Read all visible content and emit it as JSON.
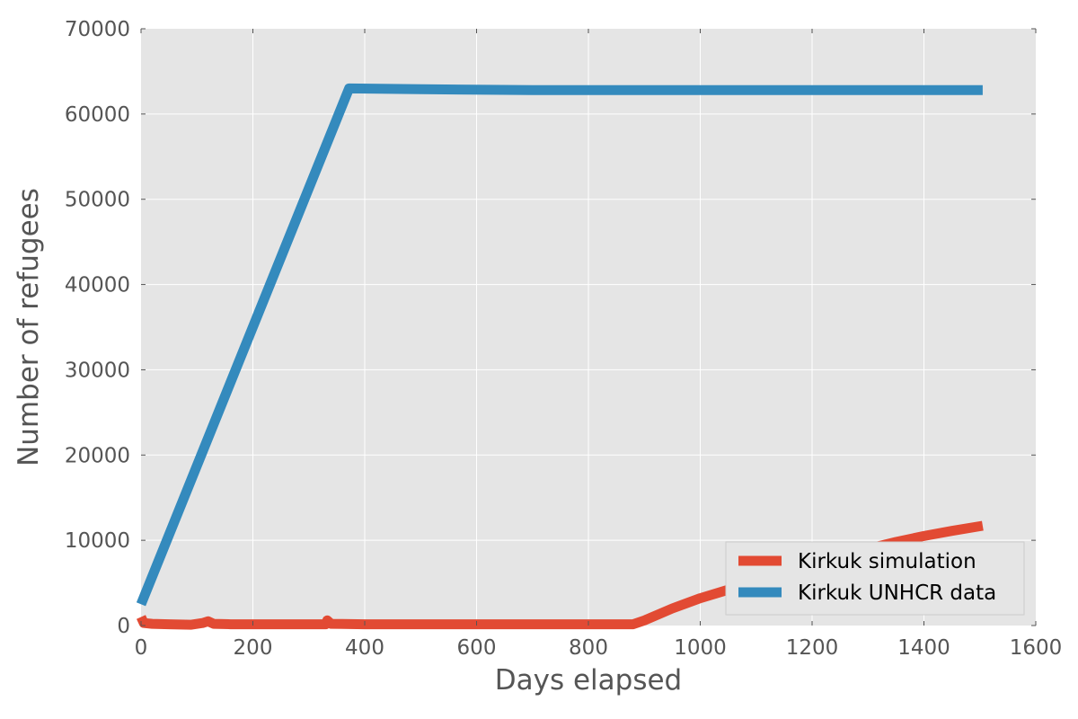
{
  "chart_data": {
    "type": "line",
    "title": "",
    "xlabel": "Days elapsed",
    "ylabel": "Number of refugees",
    "xlim": [
      0,
      1600
    ],
    "ylim": [
      0,
      70000
    ],
    "xticks": [
      0,
      200,
      400,
      600,
      800,
      1000,
      1200,
      1400,
      1600
    ],
    "yticks": [
      0,
      10000,
      20000,
      30000,
      40000,
      50000,
      60000,
      70000
    ],
    "grid": true,
    "legend_position": "lower-right",
    "series": [
      {
        "name": "Kirkuk simulation",
        "color": "#e24a33",
        "points": [
          [
            0,
            1000
          ],
          [
            5,
            300
          ],
          [
            20,
            200
          ],
          [
            50,
            150
          ],
          [
            90,
            100
          ],
          [
            110,
            300
          ],
          [
            120,
            500
          ],
          [
            130,
            200
          ],
          [
            160,
            150
          ],
          [
            200,
            150
          ],
          [
            330,
            150
          ],
          [
            333,
            600
          ],
          [
            340,
            200
          ],
          [
            400,
            150
          ],
          [
            600,
            150
          ],
          [
            800,
            150
          ],
          [
            880,
            150
          ],
          [
            900,
            600
          ],
          [
            950,
            2000
          ],
          [
            1000,
            3200
          ],
          [
            1050,
            4200
          ],
          [
            1100,
            5300
          ],
          [
            1150,
            6300
          ],
          [
            1200,
            7300
          ],
          [
            1250,
            8200
          ],
          [
            1300,
            9000
          ],
          [
            1350,
            9800
          ],
          [
            1400,
            10500
          ],
          [
            1450,
            11100
          ],
          [
            1505,
            11700
          ]
        ]
      },
      {
        "name": "Kirkuk UNHCR data",
        "color": "#348abd",
        "points": [
          [
            0,
            2500
          ],
          [
            372,
            63000
          ],
          [
            500,
            62900
          ],
          [
            700,
            62800
          ],
          [
            1000,
            62800
          ],
          [
            1505,
            62800
          ]
        ]
      }
    ]
  }
}
